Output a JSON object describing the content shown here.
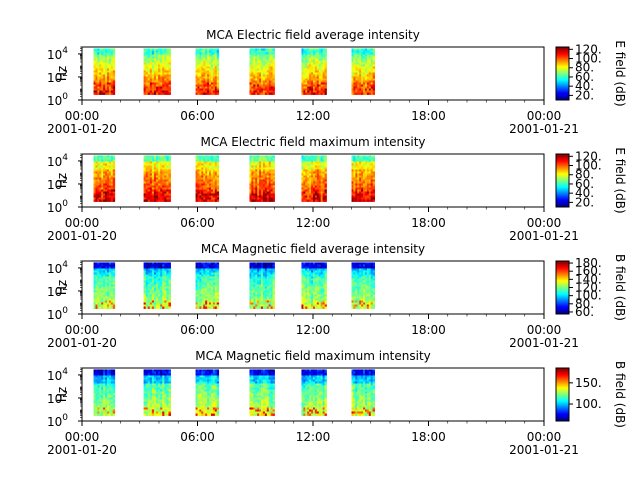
{
  "chart_data": [
    {
      "type": "heatmap",
      "title": "MCA  Electric field average intensity",
      "ylabel": "Hz",
      "y_scale": "log",
      "ylim": [
        1,
        40000
      ],
      "y_ticks": [
        {
          "v": 1,
          "b": "10",
          "e": "0"
        },
        {
          "v": 100,
          "b": "10",
          "e": "2"
        },
        {
          "v": 10000,
          "b": "10",
          "e": "4"
        }
      ],
      "x_ticks": [
        "00:00",
        "06:00",
        "12:00",
        "18:00",
        "00:00"
      ],
      "x_dates": [
        "2001-01-20",
        "2001-01-21"
      ],
      "xlim_hours": [
        0,
        24
      ],
      "colorbar": {
        "label": "E field (dB)",
        "range": [
          10,
          125
        ],
        "ticks": [
          "20.",
          "40.",
          "60.",
          "80.",
          "100.",
          "120."
        ]
      },
      "colorscale": "jet",
      "data_intervals_hours": [
        [
          0.6,
          1.7
        ],
        [
          3.2,
          4.6
        ],
        [
          5.9,
          7.1
        ],
        [
          8.7,
          10.0
        ],
        [
          11.4,
          12.7
        ],
        [
          14.0,
          15.2
        ]
      ]
    },
    {
      "type": "heatmap",
      "title": "MCA  Electric field maximum intensity",
      "ylabel": "Hz",
      "y_scale": "log",
      "ylim": [
        1,
        40000
      ],
      "y_ticks": [
        {
          "v": 1,
          "b": "10",
          "e": "0"
        },
        {
          "v": 100,
          "b": "10",
          "e": "2"
        },
        {
          "v": 10000,
          "b": "10",
          "e": "4"
        }
      ],
      "x_ticks": [
        "00:00",
        "06:00",
        "12:00",
        "18:00",
        "00:00"
      ],
      "x_dates": [
        "2001-01-20",
        "2001-01-21"
      ],
      "xlim_hours": [
        0,
        24
      ],
      "colorbar": {
        "label": "E field (dB)",
        "range": [
          10,
          125
        ],
        "ticks": [
          "20.",
          "40.",
          "60.",
          "80.",
          "100.",
          "120."
        ]
      },
      "colorscale": "jet",
      "data_intervals_hours": [
        [
          0.6,
          1.7
        ],
        [
          3.2,
          4.6
        ],
        [
          5.9,
          7.1
        ],
        [
          8.7,
          10.0
        ],
        [
          11.4,
          12.7
        ],
        [
          14.0,
          15.2
        ]
      ]
    },
    {
      "type": "heatmap",
      "title": "MCA  Magnetic field average intensity",
      "ylabel": "Hz",
      "y_scale": "log",
      "ylim": [
        1,
        40000
      ],
      "y_ticks": [
        {
          "v": 1,
          "b": "10",
          "e": "0"
        },
        {
          "v": 100,
          "b": "10",
          "e": "2"
        },
        {
          "v": 10000,
          "b": "10",
          "e": "4"
        }
      ],
      "x_ticks": [
        "00:00",
        "06:00",
        "12:00",
        "18:00",
        "00:00"
      ],
      "x_dates": [
        "2001-01-20",
        "2001-01-21"
      ],
      "xlim_hours": [
        0,
        24
      ],
      "colorbar": {
        "label": "B field (dB)",
        "range": [
          55,
          185
        ],
        "ticks": [
          "60.",
          "80.",
          "100.",
          "120.",
          "140.",
          "160.",
          "180."
        ]
      },
      "colorscale": "jet",
      "data_intervals_hours": [
        [
          0.6,
          1.7
        ],
        [
          3.2,
          4.6
        ],
        [
          5.9,
          7.1
        ],
        [
          8.7,
          10.0
        ],
        [
          11.4,
          12.7
        ],
        [
          14.0,
          15.2
        ]
      ]
    },
    {
      "type": "heatmap",
      "title": "MCA  Magnetic field maximum intensity",
      "ylabel": "Hz",
      "y_scale": "log",
      "ylim": [
        1,
        40000
      ],
      "y_ticks": [
        {
          "v": 1,
          "b": "10",
          "e": "0"
        },
        {
          "v": 100,
          "b": "10",
          "e": "2"
        },
        {
          "v": 10000,
          "b": "10",
          "e": "4"
        }
      ],
      "x_ticks": [
        "00:00",
        "06:00",
        "12:00",
        "18:00",
        "00:00"
      ],
      "x_dates": [
        "2001-01-20",
        "2001-01-21"
      ],
      "xlim_hours": [
        0,
        24
      ],
      "colorbar": {
        "label": "B field (dB)",
        "range": [
          60,
          185
        ],
        "ticks": [
          "100.",
          "150."
        ]
      },
      "colorscale": "jet",
      "data_intervals_hours": [
        [
          0.6,
          1.7
        ],
        [
          3.2,
          4.6
        ],
        [
          5.9,
          7.1
        ],
        [
          8.7,
          10.0
        ],
        [
          11.4,
          12.7
        ],
        [
          14.0,
          15.2
        ]
      ]
    }
  ]
}
